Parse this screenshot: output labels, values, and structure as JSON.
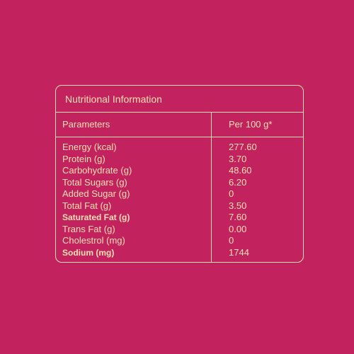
{
  "table": {
    "title": "Nutritional Information",
    "header": [
      "Parameters",
      "Per 100 g*"
    ],
    "rows": [
      [
        "Energy (kcal)",
        "277.60"
      ],
      [
        "Protein (g)",
        "3.70"
      ],
      [
        "Carbohydrate (g)",
        "48.60"
      ],
      [
        "Total Sugars (g)",
        "6.20"
      ],
      [
        "Added Sugar (g)",
        "0"
      ],
      [
        "Total Fat (g)",
        "3.50"
      ],
      [
        "Saturated Fat (g)",
        "7.60"
      ],
      [
        "Trans Fat (g)",
        "0.00"
      ],
      [
        "Cholestrol (mg)",
        "0"
      ],
      [
        "Sodium (mg)",
        "1744"
      ]
    ]
  }
}
